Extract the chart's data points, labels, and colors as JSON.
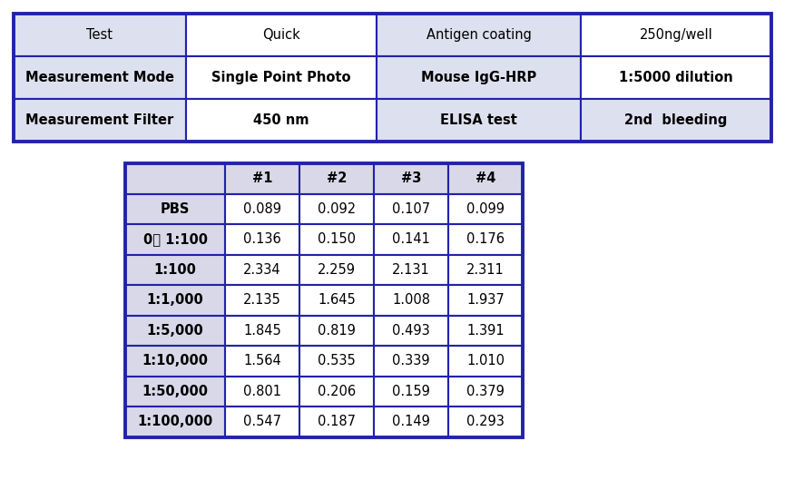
{
  "top_table": {
    "rows": [
      [
        "Test",
        "Quick",
        "Antigen coating",
        "250ng/well"
      ],
      [
        "Measurement Mode",
        "Single Point Photo",
        "Mouse IgG-HRP",
        "1:5000 dilution"
      ],
      [
        "Measurement Filter",
        "450 nm",
        "ELISA test",
        "2nd  bleeding"
      ]
    ],
    "row_bold": [
      false,
      true,
      true
    ],
    "bg_colors": [
      [
        "#dde0ee",
        "#ffffff",
        "#dde0ee",
        "#ffffff"
      ],
      [
        "#dde0ee",
        "#ffffff",
        "#dde0ee",
        "#ffffff"
      ],
      [
        "#dde0ee",
        "#ffffff",
        "#dde0ee",
        "#dde0ee"
      ]
    ],
    "border_color": "#2222aa",
    "font_size": 10.5
  },
  "bottom_table": {
    "headers": [
      "",
      "#1",
      "#2",
      "#3",
      "#4"
    ],
    "header_bold": true,
    "rows": [
      [
        "PBS",
        "0.089",
        "0.092",
        "0.107",
        "0.099"
      ],
      [
        "0차 1:100",
        "0.136",
        "0.150",
        "0.141",
        "0.176"
      ],
      [
        "1:100",
        "2.334",
        "2.259",
        "2.131",
        "2.311"
      ],
      [
        "1:1,000",
        "2.135",
        "1.645",
        "1.008",
        "1.937"
      ],
      [
        "1:5,000",
        "1.845",
        "0.819",
        "0.493",
        "1.391"
      ],
      [
        "1:10,000",
        "1.564",
        "0.535",
        "0.339",
        "1.010"
      ],
      [
        "1:50,000",
        "0.801",
        "0.206",
        "0.159",
        "0.379"
      ],
      [
        "1:100,000",
        "0.547",
        "0.187",
        "0.149",
        "0.293"
      ]
    ],
    "col0_bg": "#d8d8e8",
    "header_bg": "#d8d8e8",
    "data_bg": "#ffffff",
    "border_color": "#2222aa",
    "font_size": 10.5
  },
  "background_color": "#ffffff",
  "fig_width": 8.87,
  "fig_height": 5.4
}
